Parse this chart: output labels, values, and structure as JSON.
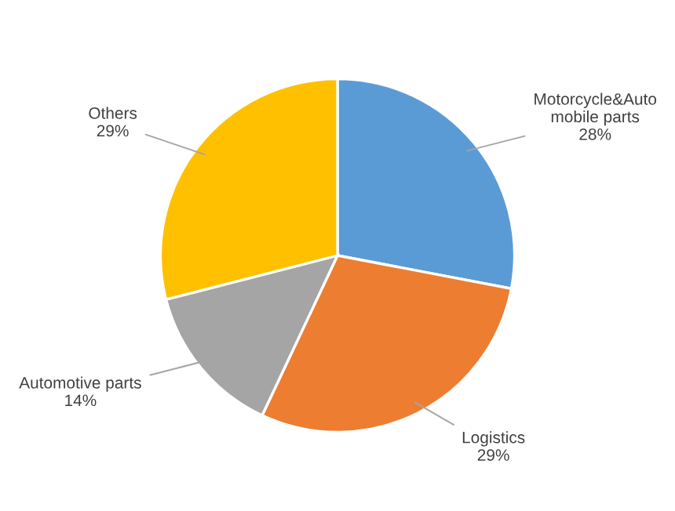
{
  "chart_data": {
    "type": "pie",
    "categories": [
      "Motorcycle&Auto\nmobile parts",
      "Logistics",
      "Automotive parts",
      "Others"
    ],
    "values": [
      28,
      29,
      14,
      29
    ],
    "value_labels": [
      "28%",
      "29%",
      "14%",
      "29%"
    ],
    "colors": [
      "#5b9bd5",
      "#ed7d31",
      "#a5a5a5",
      "#ffc000"
    ]
  }
}
